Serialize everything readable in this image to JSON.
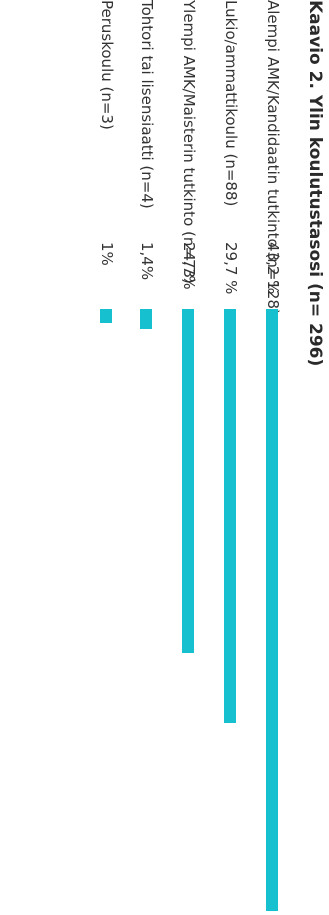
{
  "chart_data": {
    "type": "bar",
    "orientation": "horizontal",
    "title": "Kaavio 2. Ylin koulutustasosi (n= 296)",
    "categories": [
      "Alempi AMK/Kandidaatin tutkinto (n=128)",
      "Lukio/ammattikoulu (n=88)",
      "Ylempi AMK/Maisterin tutkinto (n=73)",
      "Tohtori tai lisensiaatti (n=4)",
      "Peruskoulu (n=3)"
    ],
    "values": [
      43.2,
      29.7,
      24.7,
      1.4,
      1.0
    ],
    "value_labels": [
      "43,2 %",
      "29,7 %",
      "24,7%",
      "1,4%",
      "1%"
    ],
    "bar_color": "#17c0cf",
    "xlim": [
      0,
      43.2
    ],
    "grid": false,
    "legend": "none"
  }
}
